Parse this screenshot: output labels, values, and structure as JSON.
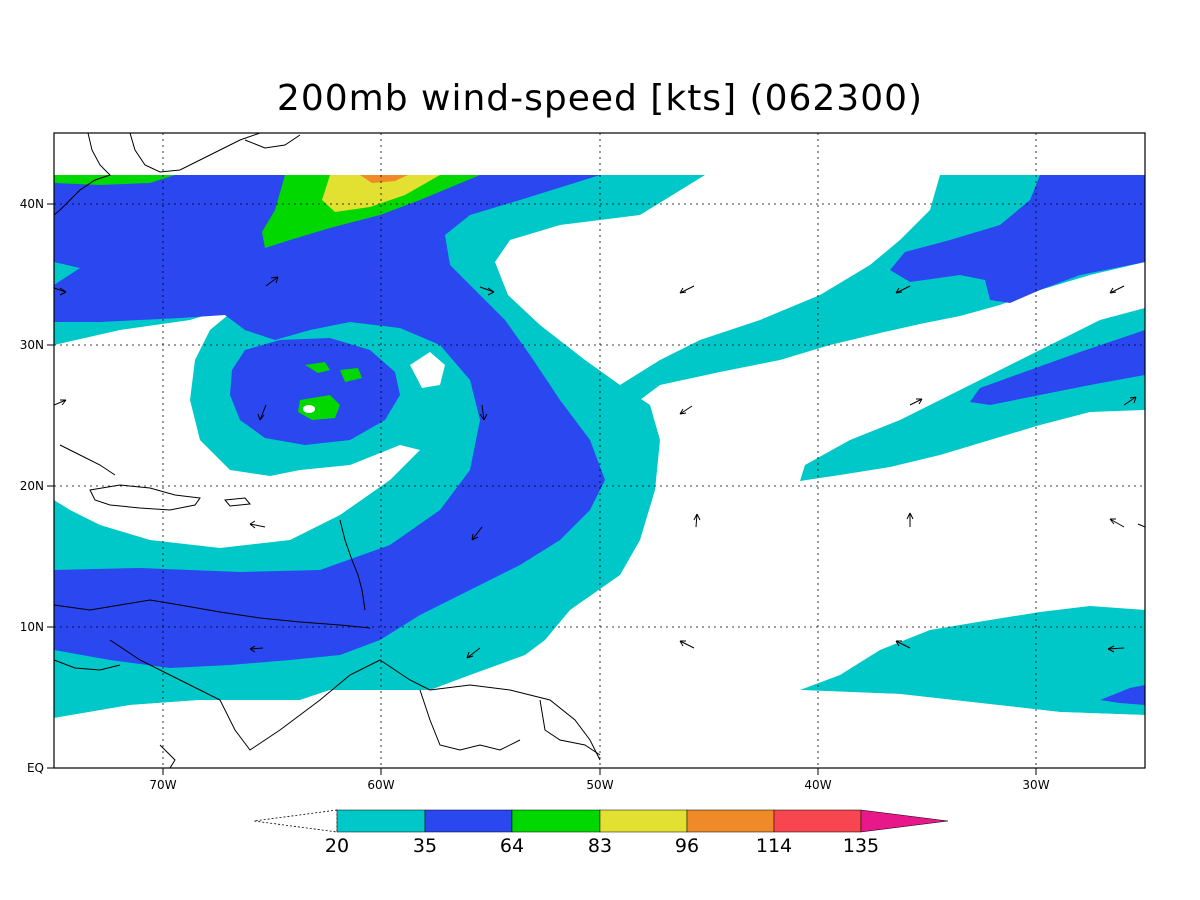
{
  "title": "200mb wind-speed [kts] (062300)",
  "axes": {
    "lat_labels": [
      "EQ",
      "10N",
      "20N",
      "30N",
      "40N"
    ],
    "lon_labels": [
      "70W",
      "60W",
      "50W",
      "40W",
      "30W"
    ]
  },
  "colorbar": {
    "levels": [
      "20",
      "35",
      "64",
      "83",
      "96",
      "114",
      "135"
    ],
    "colors": [
      "#00c8c8",
      "#2a47f0",
      "#00d800",
      "#e2e030",
      "#f08a28",
      "#f84650",
      "#e8188a"
    ]
  },
  "colors": {
    "cyan": "#00c8c8",
    "blue": "#2a47f0",
    "green": "#00d800",
    "yellow": "#e2e030",
    "orange": "#f08a28",
    "red": "#f84650",
    "magenta": "#e8188a"
  }
}
